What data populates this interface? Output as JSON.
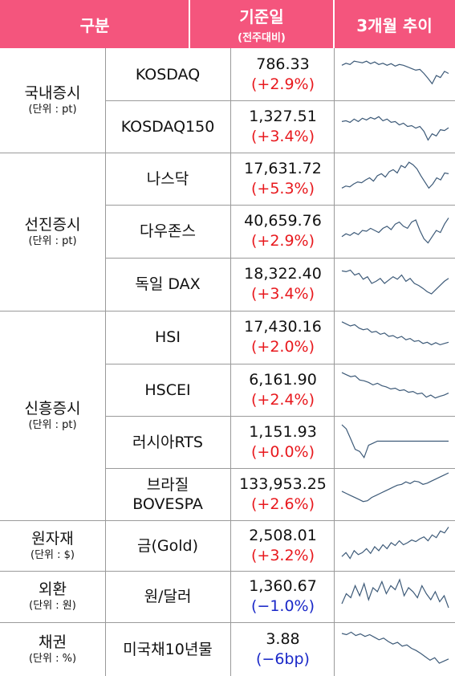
{
  "header": {
    "category": "구분",
    "base_title": "기준일",
    "base_sub": "(전주대비)",
    "trend": "3개월 추이"
  },
  "groups": [
    {
      "name": "국내증시",
      "unit": "(단위 : pt)"
    },
    {
      "name": "선진증시",
      "unit": "(단위 : pt)"
    },
    {
      "name": "신흥증시",
      "unit": "(단위 : pt)"
    },
    {
      "name": "원자재",
      "unit": "(단위 : $)"
    },
    {
      "name": "외환",
      "unit": "(단위 : 원)"
    },
    {
      "name": "채권",
      "unit": "(단위 : %)"
    }
  ],
  "rows": [
    {
      "item": "KOSDAQ",
      "value": "786.33",
      "change": "(+2.9%)",
      "dir": "up"
    },
    {
      "item": "KOSDAQ150",
      "value": "1,327.51",
      "change": "(+3.4%)",
      "dir": "up"
    },
    {
      "item": "나스닥",
      "value": "17,631.72",
      "change": "(+5.3%)",
      "dir": "up"
    },
    {
      "item": "다우존스",
      "value": "40,659.76",
      "change": "(+2.9%)",
      "dir": "up"
    },
    {
      "item": "독일 DAX",
      "value": "18,322.40",
      "change": "(+3.4%)",
      "dir": "up"
    },
    {
      "item": "HSI",
      "value": "17,430.16",
      "change": "(+2.0%)",
      "dir": "up"
    },
    {
      "item": "HSCEI",
      "value": "6,161.90",
      "change": "(+2.4%)",
      "dir": "up"
    },
    {
      "item": "러시아RTS",
      "value": "1,151.93",
      "change": "(+0.0%)",
      "dir": "up"
    },
    {
      "item": "브라질\nBOVESPA",
      "value": "133,953.25",
      "change": "(+2.6%)",
      "dir": "up"
    },
    {
      "item": "금(Gold)",
      "value": "2,508.01",
      "change": "(+3.2%)",
      "dir": "up"
    },
    {
      "item": "원/달러",
      "value": "1,360.67",
      "change": "(−1.0%)",
      "dir": "down"
    },
    {
      "item": "미국채10년물",
      "value": "3.88",
      "change": "(−6bp)",
      "dir": "down"
    }
  ],
  "colors": {
    "header_bg": "#f4557d",
    "up": "#e8191e",
    "down": "#1a28c8",
    "sparkline": "#3d5a78"
  }
}
